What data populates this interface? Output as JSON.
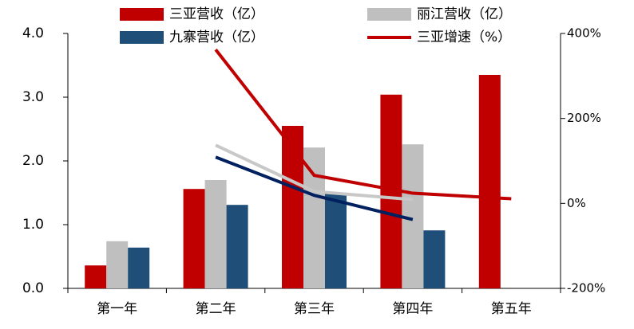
{
  "chart_data": {
    "type": "bar-line",
    "categories": [
      "第一年",
      "第二年",
      "第三年",
      "第四年",
      "第五年"
    ],
    "series": [
      {
        "name": "三亚营收（亿）",
        "color": "#c00000",
        "type": "bar",
        "values": [
          0.36,
          1.56,
          2.55,
          3.04,
          3.35
        ]
      },
      {
        "name": "丽江营收（亿）",
        "color": "#bfbfbf",
        "type": "bar",
        "values": [
          0.74,
          1.7,
          2.21,
          2.26,
          null
        ]
      },
      {
        "name": "九寨营收（亿）",
        "color": "#1f4e79",
        "type": "bar",
        "values": [
          0.64,
          1.31,
          1.5,
          0.91,
          null
        ]
      },
      {
        "name": "三亚增速（%）",
        "color": "#c00000",
        "type": "line",
        "axis": "y2",
        "values": [
          null,
          362,
          66,
          24,
          11
        ]
      },
      {
        "color": "#c8c8c8",
        "type": "line",
        "axis": "y2",
        "values": [
          null,
          137,
          28,
          9,
          null
        ]
      },
      {
        "color": "#002060",
        "type": "line",
        "axis": "y2",
        "values": [
          null,
          109,
          19,
          -38,
          null
        ]
      }
    ],
    "ylim": [
      0,
      4
    ],
    "yticks": [
      {
        "value": 0,
        "label": "0.0"
      },
      {
        "value": 1,
        "label": "1.0"
      },
      {
        "value": 2,
        "label": "2.0"
      },
      {
        "value": 3,
        "label": "3.0"
      },
      {
        "value": 4,
        "label": "4.0"
      }
    ],
    "y2lim": [
      -200,
      400
    ],
    "y2ticks": [
      {
        "value": -200,
        "label": "-200%"
      },
      {
        "value": 0,
        "label": "0%"
      },
      {
        "value": 200,
        "label": "200%"
      },
      {
        "value": 400,
        "label": "400%"
      }
    ],
    "grid": false,
    "legend": "top"
  }
}
